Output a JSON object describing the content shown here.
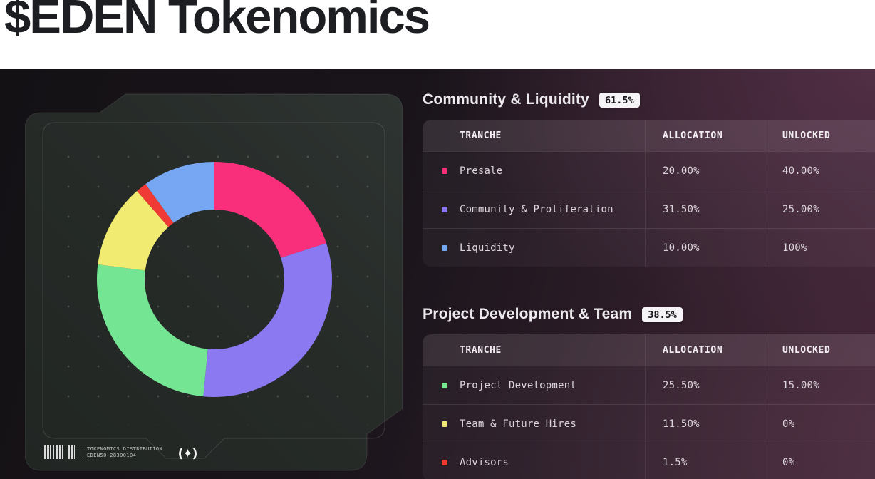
{
  "page": {
    "title": "$EDEN Tokenomics"
  },
  "chart_data": {
    "type": "pie",
    "donut": true,
    "start_angle_deg": 0,
    "direction": "clockwise",
    "title": "Tokenomics distribution donut",
    "segments": [
      {
        "label": "Presale",
        "value": 20.0,
        "color": "#fa2f7b"
      },
      {
        "label": "Community & Proliferation",
        "value": 31.5,
        "color": "#8a79f0"
      },
      {
        "label": "Project Development",
        "value": 25.5,
        "color": "#74e593"
      },
      {
        "label": "Team & Future Hires",
        "value": 11.5,
        "color": "#f2eb71"
      },
      {
        "label": "Advisors",
        "value": 1.5,
        "color": "#ef3a36"
      },
      {
        "label": "Liquidity",
        "value": 10.0,
        "color": "#77a7f3"
      }
    ]
  },
  "card": {
    "stamp_line1": "TOKENOMICS DISTRIBUTION",
    "stamp_line2": "EDEN50-28300104",
    "logo_glyph": "(✦)"
  },
  "sections": [
    {
      "title": "Community & Liquidity",
      "badge": "61.5%",
      "columns": [
        "TRANCHE",
        "ALLOCATION",
        "UNLOCKED"
      ],
      "rows": [
        {
          "tranche": "Presale",
          "color": "#fa2f7b",
          "allocation": "20.00%",
          "unlocked": "40.00%"
        },
        {
          "tranche": "Community & Proliferation",
          "color": "#8a79f0",
          "allocation": "31.50%",
          "unlocked": "25.00%"
        },
        {
          "tranche": "Liquidity",
          "color": "#77a7f3",
          "allocation": "10.00%",
          "unlocked": "100%"
        }
      ]
    },
    {
      "title": "Project Development & Team",
      "badge": "38.5%",
      "columns": [
        "TRANCHE",
        "ALLOCATION",
        "UNLOCKED"
      ],
      "rows": [
        {
          "tranche": "Project Development",
          "color": "#74e593",
          "allocation": "25.50%",
          "unlocked": "15.00%"
        },
        {
          "tranche": "Team & Future Hires",
          "color": "#f2eb71",
          "allocation": "11.50%",
          "unlocked": "0%"
        },
        {
          "tranche": "Advisors",
          "color": "#ef3a36",
          "allocation": "1.5%",
          "unlocked": "0%"
        }
      ]
    }
  ]
}
